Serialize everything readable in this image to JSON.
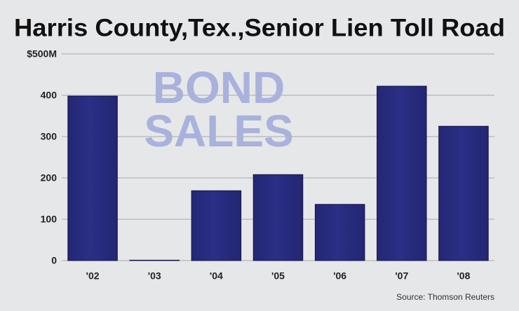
{
  "chart_data": {
    "type": "bar",
    "title": "Harris County,Tex.,Senior Lien Toll Road",
    "annotation": [
      "BOND",
      "SALES"
    ],
    "source": "Source: Thomson Reuters",
    "categories": [
      "'02",
      "'03",
      "'04",
      "'05",
      "'06",
      "'07",
      "'08"
    ],
    "values": [
      398,
      1,
      169,
      208,
      136,
      422,
      325
    ],
    "color": "#2b2f86",
    "ylim": [
      0,
      500
    ],
    "yticks": [
      0,
      100,
      200,
      300,
      400,
      {
        "value": 500,
        "label": "$500M"
      }
    ],
    "grid": true
  }
}
